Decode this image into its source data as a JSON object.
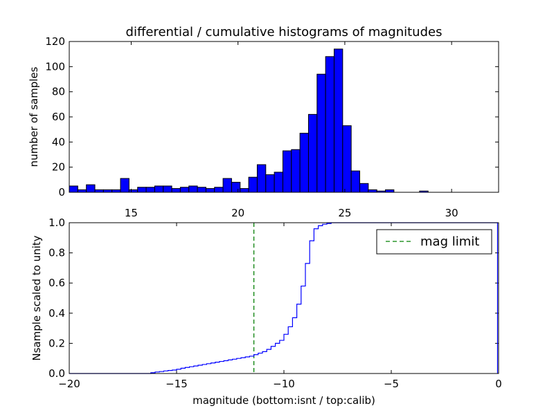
{
  "chart_data": [
    {
      "type": "bar",
      "title": "differential / cumulative histograms of magnitudes",
      "xlabel": "",
      "ylabel": "number of samples",
      "xlim": [
        12.1,
        32.2
      ],
      "ylim": [
        0,
        120
      ],
      "xticks": [
        "15",
        "20",
        "25",
        "30"
      ],
      "yticks": [
        "0",
        "20",
        "40",
        "60",
        "80",
        "100",
        "120"
      ],
      "bin_width": 0.4,
      "bin_start": 12.1,
      "color": "#0000ff",
      "values": [
        5,
        2,
        6,
        2,
        2,
        2,
        11,
        2,
        4,
        4,
        5,
        5,
        3,
        4,
        5,
        4,
        3,
        4,
        11,
        8,
        3,
        12,
        22,
        14,
        16,
        33,
        34,
        47,
        62,
        94,
        108,
        114,
        53,
        17,
        7,
        2,
        1,
        2,
        0,
        0,
        0,
        1,
        0,
        0,
        0,
        0,
        0,
        0,
        0,
        0
      ]
    },
    {
      "type": "line",
      "xlabel": "magnitude (bottom:isnt / top:calib)",
      "ylabel": "Nsample scaled to unity",
      "xlim": [
        -20,
        0
      ],
      "ylim": [
        0,
        1.0
      ],
      "xticks": [
        "−20",
        "−15",
        "−10",
        "−5",
        "0"
      ],
      "yticks": [
        "0.0",
        "0.2",
        "0.4",
        "0.6",
        "0.8",
        "1.0"
      ],
      "step": "post",
      "line_color": "#0000ff",
      "x": [
        -20,
        -16.2,
        -16.0,
        -15.8,
        -15.6,
        -15.4,
        -15.2,
        -15.0,
        -14.8,
        -14.6,
        -14.4,
        -14.2,
        -14.0,
        -13.8,
        -13.6,
        -13.4,
        -13.2,
        -13.0,
        -12.8,
        -12.6,
        -12.4,
        -12.2,
        -12.0,
        -11.8,
        -11.6,
        -11.4,
        -11.2,
        -11.0,
        -10.8,
        -10.6,
        -10.4,
        -10.2,
        -10.0,
        -9.8,
        -9.6,
        -9.4,
        -9.2,
        -9.0,
        -8.8,
        -8.6,
        -8.4,
        -8.2,
        -8.0,
        -7.8,
        -7.6,
        -7.4,
        -7.2,
        -7.0,
        -6.8,
        -0.05
      ],
      "y": [
        0.0,
        0.005,
        0.01,
        0.013,
        0.017,
        0.02,
        0.023,
        0.028,
        0.035,
        0.04,
        0.045,
        0.05,
        0.055,
        0.06,
        0.065,
        0.07,
        0.075,
        0.08,
        0.085,
        0.09,
        0.095,
        0.1,
        0.105,
        0.11,
        0.115,
        0.125,
        0.135,
        0.145,
        0.16,
        0.18,
        0.2,
        0.22,
        0.26,
        0.31,
        0.37,
        0.46,
        0.58,
        0.73,
        0.88,
        0.96,
        0.98,
        0.99,
        0.995,
        1.0,
        1.0,
        1.0,
        1.0,
        1.0,
        1.0,
        1.0
      ],
      "vline": {
        "x": -11.4,
        "label": "mag limit",
        "color": "#008000",
        "style": "dashed"
      },
      "legend": {
        "position": "upper right",
        "entries": [
          "mag limit"
        ]
      }
    }
  ]
}
